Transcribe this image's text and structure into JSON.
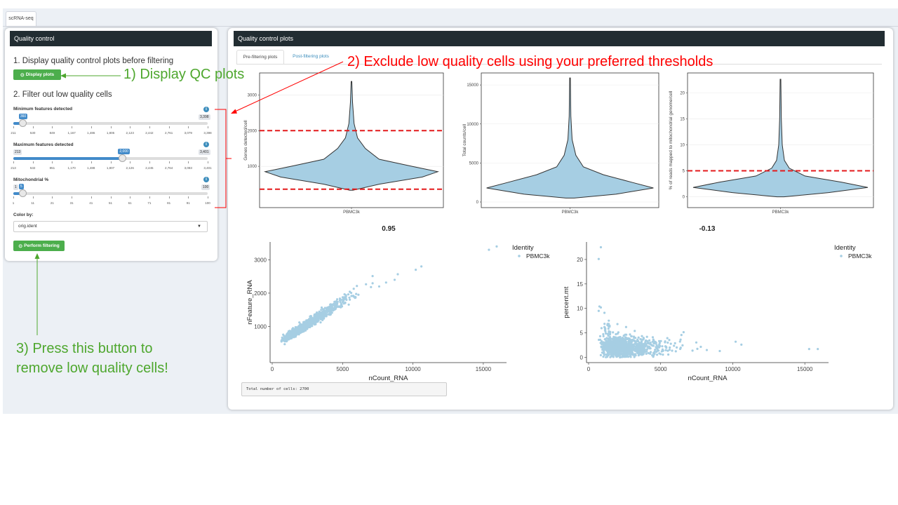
{
  "app": {
    "tab_label": "scRNA-seq"
  },
  "left_panel": {
    "title": "Quality control",
    "step1": "1. Display quality control plots before filtering",
    "display_button": "Display plots",
    "step2": "2. Filter out low quality cells",
    "sliders": [
      {
        "label": "Minimum features detected",
        "value": "360",
        "max_label": "3,398",
        "value_fraction": 0.05,
        "ticks": [
          "211",
          "530",
          "849",
          "1,167",
          "1,486",
          "1,805",
          "2,123",
          "2,442",
          "2,761",
          "3,079",
          "3,398"
        ]
      },
      {
        "label": "Maximum features detected",
        "value": "2,000",
        "min_label": "213",
        "max_label": "3,401",
        "value_fraction": 0.561,
        "ticks": [
          "213",
          "532",
          "851",
          "1,170",
          "1,488",
          "1,807",
          "2,126",
          "2,445",
          "2,764",
          "3,083",
          "3,401"
        ]
      },
      {
        "label": "Mitochondrial %",
        "value": "5",
        "min_label": "1",
        "max_label": "100",
        "value_fraction": 0.05,
        "ticks": [
          "1",
          "11",
          "21",
          "31",
          "41",
          "51",
          "61",
          "71",
          "81",
          "91",
          "100"
        ]
      }
    ],
    "color_by_label": "Color by:",
    "color_by_value": "orig.ident",
    "filter_button": "Perform filtering",
    "info_icon_glyph": "i"
  },
  "right_panel": {
    "title": "Quality control plots",
    "tabs": [
      "Pre-filtering plots",
      "Post-filtering plots"
    ],
    "cell_count_text": "Total number of cells: 2700"
  },
  "chart_data": [
    {
      "type": "violin",
      "ylabel": "Genes detected/cell",
      "categories": [
        "PBMC3k"
      ],
      "ylim": [
        0,
        3500
      ],
      "yticks": [
        1000,
        2000,
        3000
      ],
      "thresholds": [
        360,
        2000
      ],
      "threshold_color": "#e41a1c",
      "fill": "#a6cee3"
    },
    {
      "type": "violin",
      "ylabel": "Total counts/cell",
      "categories": [
        "PBMC3k"
      ],
      "ylim": [
        0,
        16000
      ],
      "yticks": [
        0,
        5000,
        10000,
        15000
      ],
      "fill": "#a6cee3"
    },
    {
      "type": "violin",
      "ylabel": "% of reads mapped to mitochondrial genome/cell",
      "categories": [
        "PBMC3k"
      ],
      "ylim": [
        -1,
        23
      ],
      "yticks": [
        0,
        5,
        10,
        15,
        20
      ],
      "thresholds": [
        5
      ],
      "threshold_color": "#e41a1c",
      "fill": "#a6cee3"
    },
    {
      "type": "scatter",
      "title": "0.95",
      "xlabel": "nCount_RNA",
      "ylabel": "nFeature_RNA",
      "xlim": [
        0,
        16500
      ],
      "ylim": [
        0,
        3450
      ],
      "xticks": [
        0,
        5000,
        10000,
        15000
      ],
      "yticks": [
        1000,
        2000,
        3000
      ],
      "legend_title": "Identity",
      "series": [
        {
          "name": "PBMC3k",
          "color": "#a6cee3"
        }
      ],
      "highlights": [
        [
          15400,
          3300
        ],
        [
          15950,
          3400
        ],
        [
          10200,
          2700
        ],
        [
          10600,
          2800
        ],
        [
          8700,
          2400
        ],
        [
          7600,
          2200
        ],
        [
          5800,
          1900
        ]
      ]
    },
    {
      "type": "scatter",
      "title": "-0.13",
      "xlabel": "nCount_RNA",
      "ylabel": "percent.mt",
      "xlim": [
        0,
        16500
      ],
      "ylim": [
        -0.5,
        23
      ],
      "xticks": [
        0,
        5000,
        10000,
        15000
      ],
      "yticks": [
        0,
        5,
        10,
        15,
        20
      ],
      "legend_title": "Identity",
      "series": [
        {
          "name": "PBMC3k",
          "color": "#a6cee3"
        }
      ],
      "highlights": [
        [
          700,
          20.1
        ],
        [
          850,
          22.5
        ],
        [
          15300,
          1.7
        ],
        [
          15900,
          1.7
        ],
        [
          10200,
          3.2
        ],
        [
          10600,
          2.6
        ],
        [
          8200,
          1.5
        ],
        [
          9100,
          1.3
        ]
      ]
    }
  ],
  "annotations": {
    "a1": "1) Display QC plots",
    "a2": "2) Exclude low quality cells using your preferred thresholds",
    "a3_line1": "3) Press this button to",
    "a3_line2": "remove low quality cells!",
    "green": "#4ea72e",
    "red": "#ff0000"
  }
}
